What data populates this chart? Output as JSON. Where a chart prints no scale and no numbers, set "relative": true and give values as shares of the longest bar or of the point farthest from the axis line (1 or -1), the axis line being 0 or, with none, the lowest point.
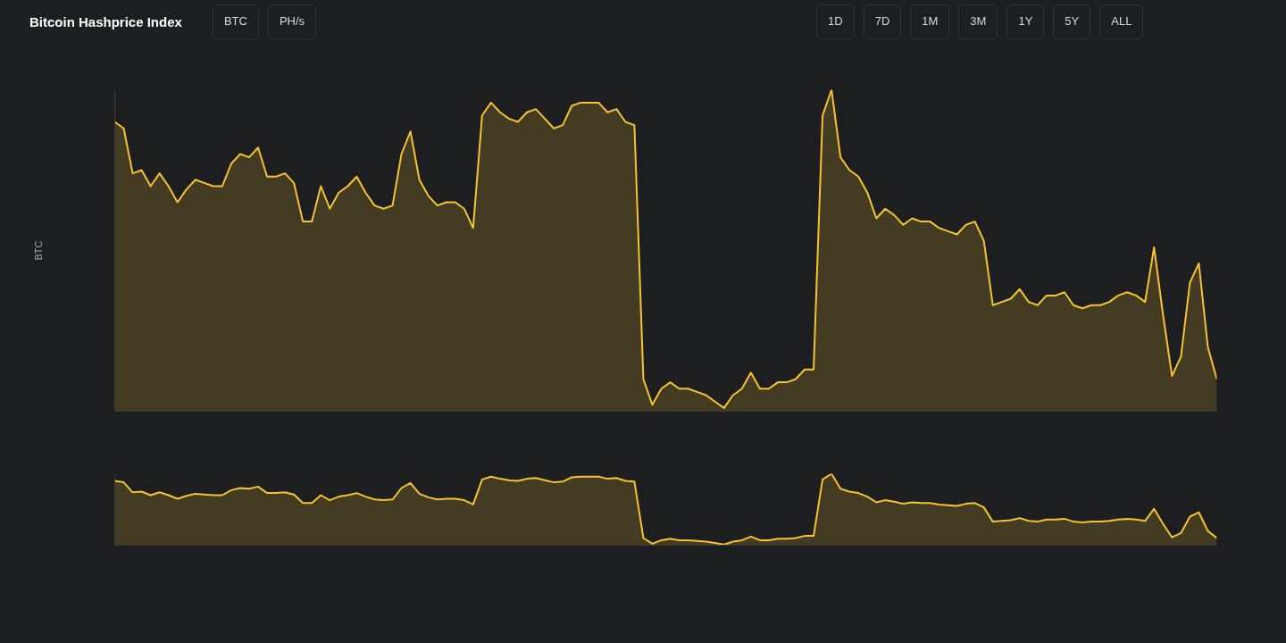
{
  "chart_data": [
    {
      "type": "area",
      "title": "Bitcoin Hashprice Index",
      "ylabel": "BTC",
      "relative": true,
      "annotations": [
        "BTC",
        "PH/s",
        "1D",
        "7D",
        "1M",
        "3M",
        "1Y",
        "5Y",
        "ALL"
      ],
      "categories": [
        null,
        null,
        null,
        null,
        null,
        null,
        null,
        null,
        null,
        null,
        null,
        null,
        null,
        null,
        null,
        null,
        null,
        null,
        null,
        null,
        null,
        null,
        null,
        null,
        null,
        null,
        null,
        null,
        null,
        null,
        null,
        null,
        null,
        null,
        null,
        null,
        null,
        null,
        null,
        null,
        null,
        null,
        null,
        null,
        null,
        null,
        null,
        null,
        null,
        null,
        null,
        null,
        null,
        null,
        null,
        null,
        null,
        null,
        null,
        null,
        null,
        null,
        null,
        null,
        null,
        null,
        null,
        null,
        null,
        null,
        null,
        null,
        null,
        null,
        null,
        null,
        null,
        null,
        null,
        null,
        null,
        null,
        null,
        null,
        null,
        null,
        null,
        null,
        null,
        null,
        null,
        null,
        null,
        null,
        null,
        null,
        null,
        null,
        null,
        null,
        null,
        null,
        null,
        null,
        null,
        null,
        null,
        null,
        null,
        null,
        null,
        null,
        null,
        null,
        null,
        null,
        null,
        null,
        null,
        null,
        null,
        null,
        null,
        null
      ],
      "series": [
        {
          "color": "#f7c331",
          "values": [
            0.9,
            0.88,
            0.74,
            0.75,
            0.7,
            0.74,
            0.7,
            0.65,
            0.69,
            0.72,
            0.71,
            0.7,
            0.7,
            0.77,
            0.8,
            0.79,
            0.82,
            0.73,
            0.73,
            0.74,
            0.71,
            0.59,
            0.59,
            0.7,
            0.63,
            0.68,
            0.7,
            0.73,
            0.68,
            0.64,
            0.63,
            0.64,
            0.8,
            0.87,
            0.72,
            0.67,
            0.64,
            0.65,
            0.65,
            0.63,
            0.57,
            0.92,
            0.96,
            0.93,
            0.91,
            0.9,
            0.93,
            0.94,
            0.91,
            0.88,
            0.89,
            0.95,
            0.96,
            0.96,
            0.96,
            0.93,
            0.94,
            0.9,
            0.89,
            0.1,
            0.02,
            0.07,
            0.09,
            0.07,
            0.07,
            0.06,
            0.05,
            0.03,
            0.01,
            0.05,
            0.07,
            0.12,
            0.07,
            0.07,
            0.09,
            0.09,
            0.1,
            0.13,
            0.13,
            0.92,
            1.0,
            0.79,
            0.75,
            0.73,
            0.68,
            0.6,
            0.63,
            0.61,
            0.58,
            0.6,
            0.59,
            0.59,
            0.57,
            0.56,
            0.55,
            0.58,
            0.59,
            0.53,
            0.33,
            0.34,
            0.35,
            0.38,
            0.34,
            0.33,
            0.36,
            0.36,
            0.37,
            0.33,
            0.32,
            0.33,
            0.33,
            0.34,
            0.36,
            0.37,
            0.36,
            0.34,
            0.51,
            0.3,
            0.11,
            0.17,
            0.4,
            0.46,
            0.2,
            0.1
          ]
        }
      ]
    },
    {
      "type": "area",
      "relative": true,
      "categories": [
        null,
        null,
        null,
        null,
        null,
        null,
        null,
        null,
        null,
        null,
        null,
        null,
        null,
        null,
        null,
        null,
        null,
        null,
        null,
        null,
        null,
        null,
        null,
        null,
        null,
        null,
        null,
        null,
        null,
        null,
        null,
        null,
        null,
        null,
        null,
        null,
        null,
        null,
        null,
        null,
        null,
        null,
        null,
        null,
        null,
        null,
        null,
        null,
        null,
        null,
        null,
        null,
        null,
        null,
        null,
        null,
        null,
        null,
        null,
        null,
        null,
        null,
        null,
        null,
        null,
        null,
        null,
        null,
        null,
        null,
        null,
        null,
        null,
        null,
        null,
        null,
        null,
        null,
        null,
        null,
        null,
        null,
        null,
        null,
        null,
        null,
        null,
        null,
        null,
        null,
        null,
        null,
        null,
        null,
        null,
        null,
        null,
        null,
        null,
        null,
        null,
        null,
        null,
        null,
        null,
        null,
        null,
        null,
        null,
        null,
        null,
        null,
        null,
        null,
        null,
        null,
        null,
        null,
        null,
        null,
        null,
        null,
        null,
        null
      ],
      "series": [
        {
          "color": "#f7c331",
          "values": [
            0.9,
            0.88,
            0.74,
            0.75,
            0.7,
            0.74,
            0.7,
            0.65,
            0.69,
            0.72,
            0.71,
            0.7,
            0.7,
            0.77,
            0.8,
            0.79,
            0.82,
            0.73,
            0.73,
            0.74,
            0.71,
            0.59,
            0.59,
            0.7,
            0.63,
            0.68,
            0.7,
            0.73,
            0.68,
            0.64,
            0.63,
            0.64,
            0.8,
            0.87,
            0.72,
            0.67,
            0.64,
            0.65,
            0.65,
            0.63,
            0.57,
            0.92,
            0.96,
            0.93,
            0.91,
            0.9,
            0.93,
            0.94,
            0.91,
            0.88,
            0.89,
            0.95,
            0.96,
            0.96,
            0.96,
            0.93,
            0.94,
            0.9,
            0.89,
            0.1,
            0.02,
            0.07,
            0.09,
            0.07,
            0.07,
            0.06,
            0.05,
            0.03,
            0.01,
            0.05,
            0.07,
            0.12,
            0.07,
            0.07,
            0.09,
            0.09,
            0.1,
            0.13,
            0.13,
            0.92,
            1.0,
            0.79,
            0.75,
            0.73,
            0.68,
            0.6,
            0.63,
            0.61,
            0.58,
            0.6,
            0.59,
            0.59,
            0.57,
            0.56,
            0.55,
            0.58,
            0.59,
            0.53,
            0.33,
            0.34,
            0.35,
            0.38,
            0.34,
            0.33,
            0.36,
            0.36,
            0.37,
            0.33,
            0.32,
            0.33,
            0.33,
            0.34,
            0.36,
            0.37,
            0.36,
            0.34,
            0.51,
            0.3,
            0.11,
            0.17,
            0.4,
            0.46,
            0.2,
            0.1
          ]
        }
      ]
    }
  ]
}
